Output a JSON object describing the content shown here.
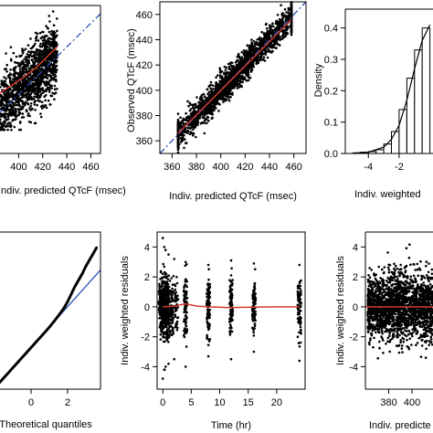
{
  "chart_data": [
    {
      "id": "p1",
      "type": "scatter",
      "xlabel": "Indiv. predicted QTcF (msec)",
      "ylabel": "",
      "xticks": [
        400,
        420,
        440,
        460
      ],
      "yticks": [],
      "xlim": [
        383,
        468
      ],
      "ylim": [
        350,
        475
      ],
      "points_summary": {
        "x_range": [
          383,
          432
        ],
        "y_range": [
          370,
          470
        ],
        "count": 1400
      },
      "identity_line": {
        "x": [
          383,
          468
        ],
        "y": [
          383,
          468
        ]
      },
      "smooth": {
        "x": [
          383,
          395,
          405,
          415,
          425,
          432
        ],
        "y": [
          400,
          408,
          415,
          423,
          433,
          440
        ]
      },
      "grid": false
    },
    {
      "id": "p2",
      "type": "scatter",
      "xlabel": "Indiv. predicted QTcF (msec)",
      "ylabel": "Observed QTcF (msec)",
      "xticks": [
        360,
        380,
        400,
        420,
        440,
        460
      ],
      "yticks": [
        360,
        380,
        400,
        420,
        440,
        460
      ],
      "xlim": [
        350,
        470
      ],
      "ylim": [
        350,
        470
      ],
      "points_summary": {
        "x_range": [
          365,
          458
        ],
        "y_range": [
          362,
          460
        ],
        "count": 2200
      },
      "identity_line": {
        "x": [
          350,
          470
        ],
        "y": [
          350,
          470
        ]
      },
      "smooth": {
        "x": [
          365,
          458
        ],
        "y": [
          366,
          456
        ]
      },
      "grid": false
    },
    {
      "id": "p3",
      "type": "bar",
      "title": "",
      "xlabel": "Indiv. weighted",
      "ylabel": "Density",
      "xticks": [
        -4,
        -2
      ],
      "yticks": [
        0.0,
        0.1,
        0.2,
        0.3,
        0.4
      ],
      "xlim": [
        -5.5,
        0.2
      ],
      "ylim": [
        0,
        0.46
      ],
      "bins": [
        {
          "x0": -5.0,
          "x1": -4.5,
          "value": 0.002
        },
        {
          "x0": -4.5,
          "x1": -4.0,
          "value": 0.004
        },
        {
          "x0": -4.0,
          "x1": -3.5,
          "value": 0.006
        },
        {
          "x0": -3.5,
          "x1": -3.0,
          "value": 0.012
        },
        {
          "x0": -3.0,
          "x1": -2.5,
          "value": 0.03
        },
        {
          "x0": -2.5,
          "x1": -2.0,
          "value": 0.07
        },
        {
          "x0": -2.0,
          "x1": -1.5,
          "value": 0.14
        },
        {
          "x0": -1.5,
          "x1": -1.0,
          "value": 0.24
        },
        {
          "x0": -1.0,
          "x1": -0.5,
          "value": 0.33
        },
        {
          "x0": -0.5,
          "x1": 0.0,
          "value": 0.4
        }
      ],
      "density_curve": {
        "x": [
          -5.0,
          -4.0,
          -3.0,
          -2.5,
          -2.0,
          -1.5,
          -1.0,
          -0.5,
          0.0
        ],
        "y": [
          0.001,
          0.004,
          0.02,
          0.045,
          0.09,
          0.17,
          0.27,
          0.36,
          0.41
        ]
      },
      "grid": false
    },
    {
      "id": "p4",
      "type": "scatter",
      "xlabel": "Theoretical quantiles",
      "ylabel": "",
      "xticks": [
        0,
        2
      ],
      "yticks": [],
      "xlim": [
        -1.8,
        3.8
      ],
      "ylim": [
        -1.0,
        5.2
      ],
      "qq_line": {
        "x": [
          -1.8,
          3.8
        ],
        "y": [
          -0.8,
          3.7
        ]
      },
      "qq_points": {
        "x": [
          -1.8,
          -1.5,
          -1.2,
          -0.9,
          -0.6,
          -0.3,
          0.0,
          0.3,
          0.6,
          0.9,
          1.2,
          1.5,
          1.8,
          2.0,
          2.2,
          2.4,
          2.6,
          2.8,
          3.0,
          3.2,
          3.4,
          3.6
        ],
        "y": [
          -0.8,
          -0.56,
          -0.32,
          -0.08,
          0.16,
          0.4,
          0.64,
          0.88,
          1.12,
          1.36,
          1.62,
          1.9,
          2.2,
          2.45,
          2.75,
          3.05,
          3.3,
          3.55,
          3.85,
          4.1,
          4.35,
          4.6
        ]
      },
      "grid": false
    },
    {
      "id": "p5",
      "type": "scatter",
      "xlabel": "Time (hr)",
      "ylabel": "Indiv. weighted residuals",
      "xticks": [
        0,
        5,
        10,
        15,
        20
      ],
      "yticks": [
        -4,
        -2,
        0,
        2,
        4
      ],
      "xlim": [
        -1,
        25
      ],
      "ylim": [
        -5.5,
        5
      ],
      "time_points": [
        0,
        0.25,
        0.5,
        1,
        2,
        4,
        8,
        12,
        16,
        24
      ],
      "spread": [
        {
          "t": 0,
          "low": -4.8,
          "high": 4.6
        },
        {
          "t": 0.25,
          "low": -4.2,
          "high": 4.0
        },
        {
          "t": 0.5,
          "low": -4.0,
          "high": 3.8
        },
        {
          "t": 1,
          "low": -3.8,
          "high": 3.5
        },
        {
          "t": 2,
          "low": -3.5,
          "high": 3.2
        },
        {
          "t": 4,
          "low": -4.0,
          "high": 3.0
        },
        {
          "t": 8,
          "low": -3.3,
          "high": 2.8
        },
        {
          "t": 12,
          "low": -3.5,
          "high": 3.1
        },
        {
          "t": 16,
          "low": -3.0,
          "high": 2.9
        },
        {
          "t": 24,
          "low": -3.6,
          "high": 2.8
        }
      ],
      "smooth": {
        "x": [
          0,
          2,
          4,
          6,
          8,
          12,
          16,
          20,
          24
        ],
        "y": [
          0.0,
          0.05,
          0.2,
          0.05,
          0.0,
          -0.05,
          -0.02,
          0.0,
          0.0
        ]
      },
      "grid": false
    },
    {
      "id": "p6",
      "type": "scatter",
      "xlabel": "Indiv. predicte",
      "ylabel": "Indiv. weighted residuals",
      "xticks": [
        380,
        400
      ],
      "yticks": [
        -4,
        -2,
        0,
        2,
        4
      ],
      "xlim": [
        360,
        418
      ],
      "ylim": [
        -5.5,
        5
      ],
      "points_summary": {
        "x_range": [
          362,
          418
        ],
        "y_range": [
          -4.5,
          4.5
        ],
        "count": 2000
      },
      "smooth": {
        "x": [
          360,
          418
        ],
        "y": [
          0.0,
          0.0
        ]
      },
      "grid": false
    }
  ]
}
